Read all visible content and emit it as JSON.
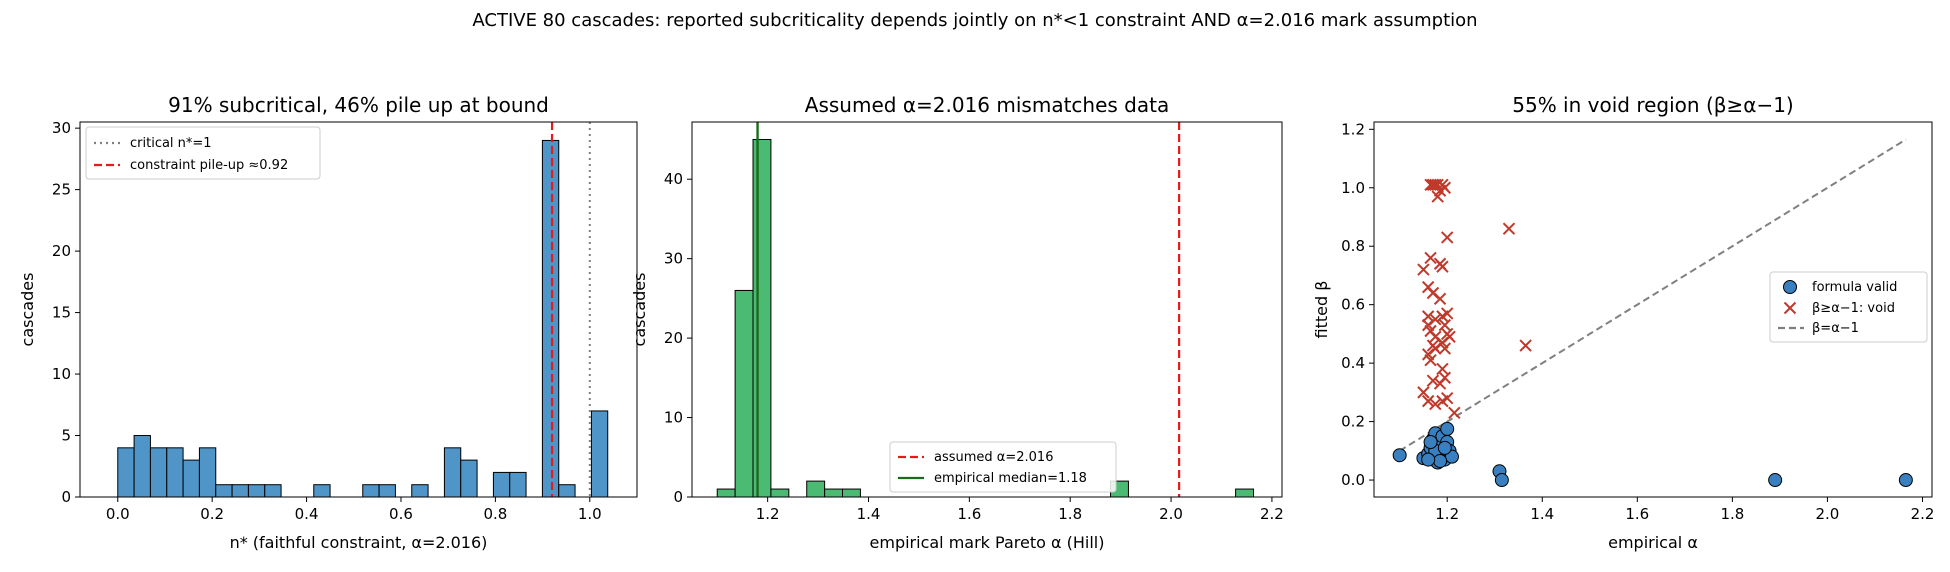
{
  "suptitle": "ACTIVE 80 cascades: reported subcriticality depends jointly on n*<1 constraint AND α=2.016 mark assumption",
  "colors": {
    "blue": "#4f95c8",
    "green": "#4bba73",
    "red": "#e41a1c",
    "dkgreen": "#1a6b1a",
    "gray": "#808080",
    "xred": "#c0392b",
    "circ": "#3a80c0"
  },
  "chart_data": [
    {
      "type": "bar",
      "title": "91% subcritical, 46% pile up at bound",
      "xlabel": "n* (faithful constraint, α=2.016)",
      "ylabel": "cascades",
      "xlim": [
        -0.08,
        1.1
      ],
      "ylim": [
        0,
        30.5
      ],
      "xticks": [
        0.0,
        0.2,
        0.4,
        0.6,
        0.8,
        1.0
      ],
      "yticks": [
        0,
        5,
        10,
        15,
        20,
        25,
        30
      ],
      "bin_width": 0.0346,
      "bins": [
        {
          "x": 0.0,
          "count": 4
        },
        {
          "x": 0.0346,
          "count": 5
        },
        {
          "x": 0.0692,
          "count": 4
        },
        {
          "x": 0.1038,
          "count": 4
        },
        {
          "x": 0.1384,
          "count": 3
        },
        {
          "x": 0.173,
          "count": 4
        },
        {
          "x": 0.2076,
          "count": 1
        },
        {
          "x": 0.2422,
          "count": 1
        },
        {
          "x": 0.2768,
          "count": 1
        },
        {
          "x": 0.3114,
          "count": 1
        },
        {
          "x": 0.4152,
          "count": 1
        },
        {
          "x": 0.519,
          "count": 1
        },
        {
          "x": 0.5536,
          "count": 1
        },
        {
          "x": 0.6228,
          "count": 1
        },
        {
          "x": 0.692,
          "count": 4
        },
        {
          "x": 0.7266,
          "count": 3
        },
        {
          "x": 0.7958,
          "count": 2
        },
        {
          "x": 0.8304,
          "count": 2
        },
        {
          "x": 0.8996,
          "count": 29
        },
        {
          "x": 0.9342,
          "count": 1
        },
        {
          "x": 1.0034,
          "count": 7
        }
      ],
      "vlines": [
        {
          "x": 1.0,
          "label": "critical n*=1",
          "style": "dotted",
          "color": "gray"
        },
        {
          "x": 0.92,
          "label": "constraint pile-up ≈0.92",
          "style": "dashed",
          "color": "red"
        }
      ],
      "legend": "top-left"
    },
    {
      "type": "bar",
      "title": "Assumed α=2.016 mismatches data",
      "xlabel": "empirical mark Pareto α (Hill)",
      "ylabel": "cascades",
      "xlim": [
        1.05,
        2.22
      ],
      "ylim": [
        0,
        47.2
      ],
      "xticks": [
        1.2,
        1.4,
        1.6,
        1.8,
        2.0,
        2.2
      ],
      "yticks": [
        0,
        10,
        20,
        30,
        40
      ],
      "bin_width": 0.0355,
      "bins": [
        {
          "x": 1.1,
          "count": 1
        },
        {
          "x": 1.1355,
          "count": 26
        },
        {
          "x": 1.171,
          "count": 45
        },
        {
          "x": 1.2065,
          "count": 1
        },
        {
          "x": 1.2775,
          "count": 2
        },
        {
          "x": 1.313,
          "count": 1
        },
        {
          "x": 1.3485,
          "count": 1
        },
        {
          "x": 1.88,
          "count": 2
        },
        {
          "x": 2.128,
          "count": 1
        }
      ],
      "vlines": [
        {
          "x": 2.016,
          "label": "assumed α=2.016",
          "style": "dashed",
          "color": "red"
        },
        {
          "x": 1.18,
          "label": "empirical median=1.18",
          "style": "solid",
          "color": "dkgreen"
        }
      ],
      "legend": "bottom-center"
    },
    {
      "type": "scatter",
      "title": "55% in void region (β≥α−1)",
      "xlabel": "empirical α",
      "ylabel": "fitted β",
      "xlim": [
        1.046,
        2.22
      ],
      "ylim": [
        -0.058,
        1.225
      ],
      "xticks": [
        1.2,
        1.4,
        1.6,
        1.8,
        2.0,
        2.2
      ],
      "yticks": [
        0.0,
        0.2,
        0.4,
        0.6,
        0.8,
        1.0,
        1.2
      ],
      "series": [
        {
          "name": "formula valid",
          "marker": "circle",
          "color": "circ",
          "points": [
            [
              1.1,
              0.085
            ],
            [
              1.15,
              0.075
            ],
            [
              1.16,
              0.09
            ],
            [
              1.165,
              0.11
            ],
            [
              1.17,
              0.07
            ],
            [
              1.17,
              0.14
            ],
            [
              1.175,
              0.16
            ],
            [
              1.18,
              0.06
            ],
            [
              1.18,
              0.12
            ],
            [
              1.185,
              0.095
            ],
            [
              1.19,
              0.08
            ],
            [
              1.19,
              0.15
            ],
            [
              1.195,
              0.07
            ],
            [
              1.2,
              0.13
            ],
            [
              1.2,
              0.175
            ],
            [
              1.205,
              0.1
            ],
            [
              1.21,
              0.08
            ],
            [
              1.175,
              0.1
            ],
            [
              1.185,
              0.065
            ],
            [
              1.165,
              0.13
            ],
            [
              1.195,
              0.11
            ],
            [
              1.16,
              0.07
            ],
            [
              1.31,
              0.03
            ],
            [
              1.315,
              0.0
            ],
            [
              1.89,
              0.0
            ],
            [
              2.165,
              0.0
            ]
          ]
        },
        {
          "name": "β≥α−1: void",
          "marker": "x",
          "color": "xred",
          "points": [
            [
              1.165,
              1.01
            ],
            [
              1.17,
              1.01
            ],
            [
              1.175,
              1.01
            ],
            [
              1.18,
              1.01
            ],
            [
              1.185,
              0.99
            ],
            [
              1.19,
              1.01
            ],
            [
              1.195,
              1.0
            ],
            [
              1.18,
              0.97
            ],
            [
              1.2,
              0.83
            ],
            [
              1.33,
              0.86
            ],
            [
              1.15,
              0.72
            ],
            [
              1.165,
              0.76
            ],
            [
              1.185,
              0.74
            ],
            [
              1.19,
              0.73
            ],
            [
              1.16,
              0.66
            ],
            [
              1.17,
              0.64
            ],
            [
              1.185,
              0.62
            ],
            [
              1.16,
              0.56
            ],
            [
              1.16,
              0.53
            ],
            [
              1.175,
              0.55
            ],
            [
              1.19,
              0.56
            ],
            [
              1.195,
              0.53
            ],
            [
              1.2,
              0.57
            ],
            [
              1.165,
              0.51
            ],
            [
              1.175,
              0.49
            ],
            [
              1.19,
              0.47
            ],
            [
              1.2,
              0.5
            ],
            [
              1.205,
              0.49
            ],
            [
              1.17,
              0.46
            ],
            [
              1.175,
              0.45
            ],
            [
              1.195,
              0.45
            ],
            [
              1.365,
              0.46
            ],
            [
              1.16,
              0.43
            ],
            [
              1.165,
              0.41
            ],
            [
              1.19,
              0.38
            ],
            [
              1.195,
              0.35
            ],
            [
              1.17,
              0.34
            ],
            [
              1.185,
              0.33
            ],
            [
              1.15,
              0.3
            ],
            [
              1.16,
              0.27
            ],
            [
              1.175,
              0.26
            ],
            [
              1.19,
              0.27
            ],
            [
              1.2,
              0.28
            ],
            [
              1.215,
              0.23
            ]
          ]
        }
      ],
      "line": {
        "name": "β=α−1",
        "from": [
          1.1,
          0.1
        ],
        "to": [
          2.165,
          1.165
        ],
        "style": "dashed",
        "color": "gray"
      },
      "legend": "center-right"
    }
  ]
}
